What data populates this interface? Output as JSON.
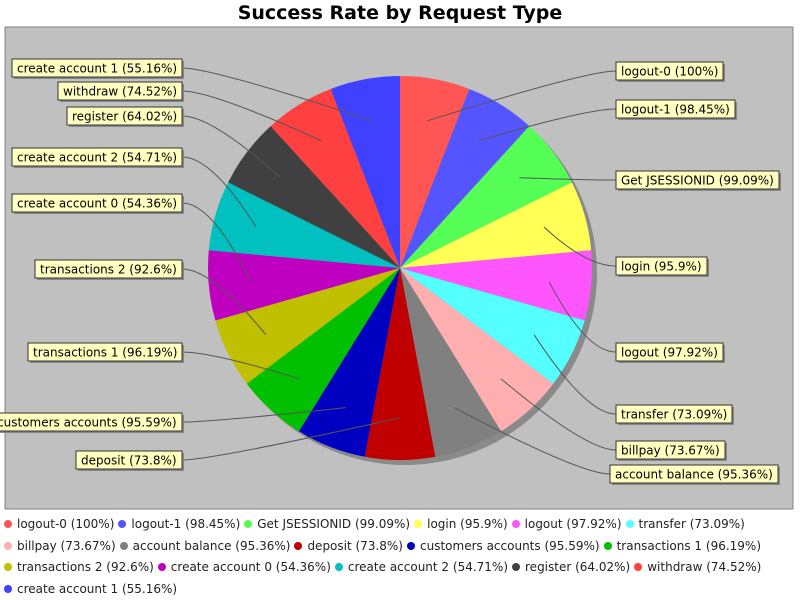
{
  "chart_data": {
    "type": "pie",
    "title": "Success Rate by Request Type",
    "legend_position": "bottom",
    "slices": [
      {
        "label": "logout-0 (100%)",
        "value": 1,
        "color": "#ff5555"
      },
      {
        "label": "logout-1 (98.45%)",
        "value": 1,
        "color": "#5555ff"
      },
      {
        "label": "Get JSESSIONID (99.09%)",
        "value": 1,
        "color": "#55ff55"
      },
      {
        "label": "login (95.9%)",
        "value": 1,
        "color": "#ffff55"
      },
      {
        "label": "logout (97.92%)",
        "value": 1,
        "color": "#ff55ff"
      },
      {
        "label": "transfer (73.09%)",
        "value": 1,
        "color": "#55ffff"
      },
      {
        "label": "billpay (73.67%)",
        "value": 1,
        "color": "#ffafaf"
      },
      {
        "label": "account balance (95.36%)",
        "value": 1,
        "color": "#808080"
      },
      {
        "label": "deposit (73.8%)",
        "value": 1,
        "color": "#c00000"
      },
      {
        "label": "customers accounts (95.59%)",
        "value": 1,
        "color": "#0000c0"
      },
      {
        "label": "transactions 1 (96.19%)",
        "value": 1,
        "color": "#00c000"
      },
      {
        "label": "transactions 2 (92.6%)",
        "value": 1,
        "color": "#c0c000"
      },
      {
        "label": "create account 0 (54.36%)",
        "value": 1,
        "color": "#c000c0"
      },
      {
        "label": "create account 2 (54.71%)",
        "value": 1,
        "color": "#00c0c0"
      },
      {
        "label": "register (64.02%)",
        "value": 1,
        "color": "#404040"
      },
      {
        "label": "withdraw (74.52%)",
        "value": 1,
        "color": "#ff4040"
      },
      {
        "label": "create account 1 (55.16%)",
        "value": 1,
        "color": "#4040ff"
      }
    ]
  },
  "colors": {
    "plot_background": "#c0c0c0",
    "label_box": "#ffffc0"
  }
}
